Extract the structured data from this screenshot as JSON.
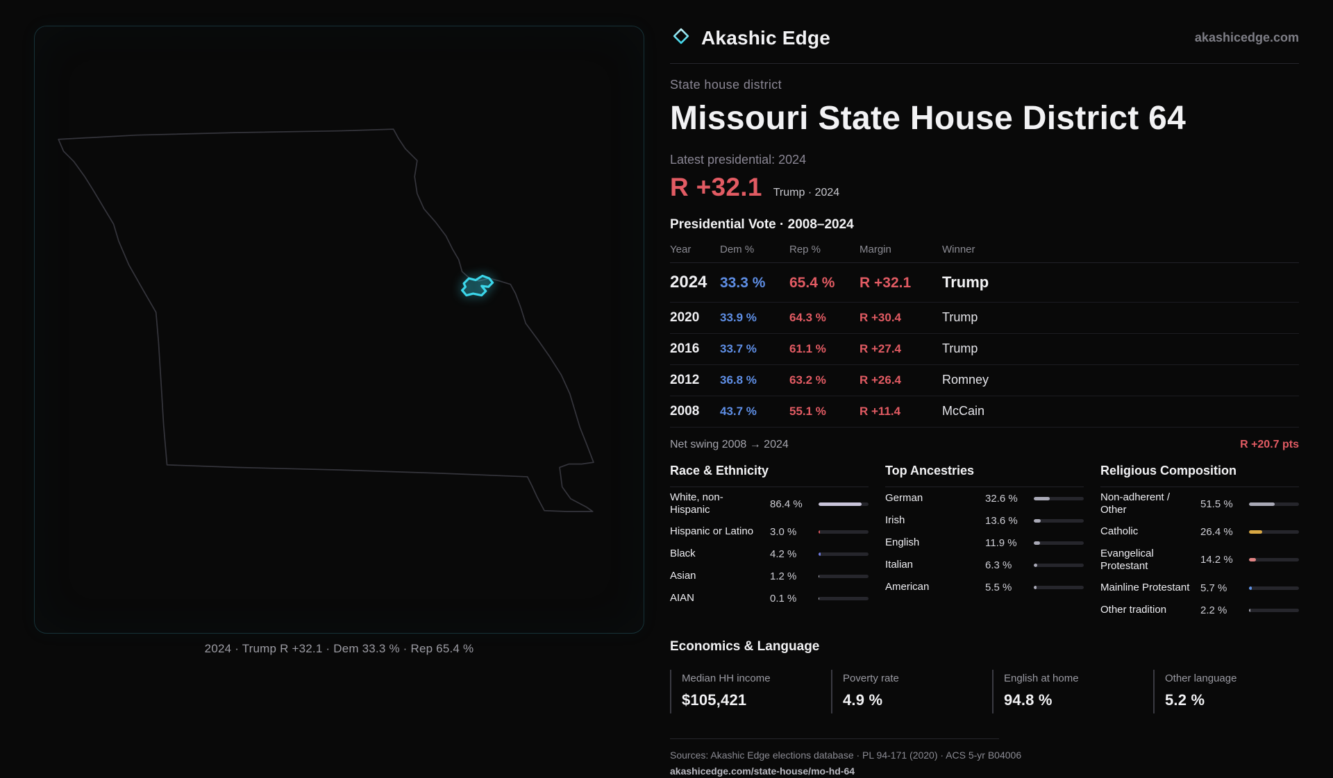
{
  "brand": {
    "name": "Akashic Edge",
    "domain": "akashicedge.com"
  },
  "map": {
    "caption": "2024 · Trump R +32.1 · Dem 33.3 % · Rep 65.4 %",
    "district_color": "#3bd6ea"
  },
  "header": {
    "kicker": "State house district",
    "title": "Missouri State House District 64",
    "latest_label": "Latest presidential: 2024",
    "headline_margin": "R +32.1",
    "headline_sub": "Trump · 2024"
  },
  "vote_table": {
    "title": "Presidential Vote · 2008–2024",
    "columns": [
      "Year",
      "Dem %",
      "Rep %",
      "Margin",
      "Winner"
    ],
    "rows": [
      {
        "year": "2024",
        "dem": "33.3 %",
        "rep": "65.4 %",
        "margin": "R +32.1",
        "winner": "Trump"
      },
      {
        "year": "2020",
        "dem": "33.9 %",
        "rep": "64.3 %",
        "margin": "R +30.4",
        "winner": "Trump"
      },
      {
        "year": "2016",
        "dem": "33.7 %",
        "rep": "61.1 %",
        "margin": "R +27.4",
        "winner": "Trump"
      },
      {
        "year": "2012",
        "dem": "36.8 %",
        "rep": "63.2 %",
        "margin": "R +26.4",
        "winner": "Romney"
      },
      {
        "year": "2008",
        "dem": "43.7 %",
        "rep": "55.1 %",
        "margin": "R +11.4",
        "winner": "McCain"
      }
    ]
  },
  "swing": {
    "label": "Net swing 2008 → 2024",
    "value": "R +20.7 pts"
  },
  "demographics": {
    "race": {
      "title": "Race & Ethnicity",
      "items": [
        {
          "label": "White, non-Hispanic",
          "value": "86.4 %",
          "pct": 86.4,
          "color": "#c9c4da"
        },
        {
          "label": "Hispanic or Latino",
          "value": "3.0 %",
          "pct": 3.0,
          "color": "#e0565f"
        },
        {
          "label": "Black",
          "value": "4.2 %",
          "pct": 4.2,
          "color": "#6d79e0"
        },
        {
          "label": "Asian",
          "value": "1.2 %",
          "pct": 1.2,
          "color": "#b9b9c4"
        },
        {
          "label": "AIAN",
          "value": "0.1 %",
          "pct": 0.1,
          "color": "#b9b9c4"
        }
      ]
    },
    "ancestry": {
      "title": "Top Ancestries",
      "items": [
        {
          "label": "German",
          "value": "32.6 %",
          "pct": 32.6,
          "color": "#a9a9b6"
        },
        {
          "label": "Irish",
          "value": "13.6 %",
          "pct": 13.6,
          "color": "#a9a9b6"
        },
        {
          "label": "English",
          "value": "11.9 %",
          "pct": 11.9,
          "color": "#a9a9b6"
        },
        {
          "label": "Italian",
          "value": "6.3 %",
          "pct": 6.3,
          "color": "#a9a9b6"
        },
        {
          "label": "American",
          "value": "5.5 %",
          "pct": 5.5,
          "color": "#a9a9b6"
        }
      ]
    },
    "religion": {
      "title": "Religious Composition",
      "items": [
        {
          "label": "Non-adherent / Other",
          "value": "51.5 %",
          "pct": 51.5,
          "color": "#a9a9b6"
        },
        {
          "label": "Catholic",
          "value": "26.4 %",
          "pct": 26.4,
          "color": "#d9a844"
        },
        {
          "label": "Evangelical Protestant",
          "value": "14.2 %",
          "pct": 14.2,
          "color": "#e08383"
        },
        {
          "label": "Mainline Protestant",
          "value": "5.7 %",
          "pct": 5.7,
          "color": "#6092e6"
        },
        {
          "label": "Other tradition",
          "value": "2.2 %",
          "pct": 2.2,
          "color": "#a9a9b6"
        }
      ]
    }
  },
  "economics": {
    "title": "Economics & Language",
    "stats": [
      {
        "label": "Median HH income",
        "value": "$105,421"
      },
      {
        "label": "Poverty rate",
        "value": "4.9 %"
      },
      {
        "label": "English at home",
        "value": "94.8 %"
      },
      {
        "label": "Other language",
        "value": "5.2 %"
      }
    ]
  },
  "footer": {
    "sources": "Sources: Akashic Edge elections database · PL 94-171 (2020) · ACS 5-yr B04006",
    "permalink": "akashicedge.com/state-house/mo-hd-64"
  }
}
